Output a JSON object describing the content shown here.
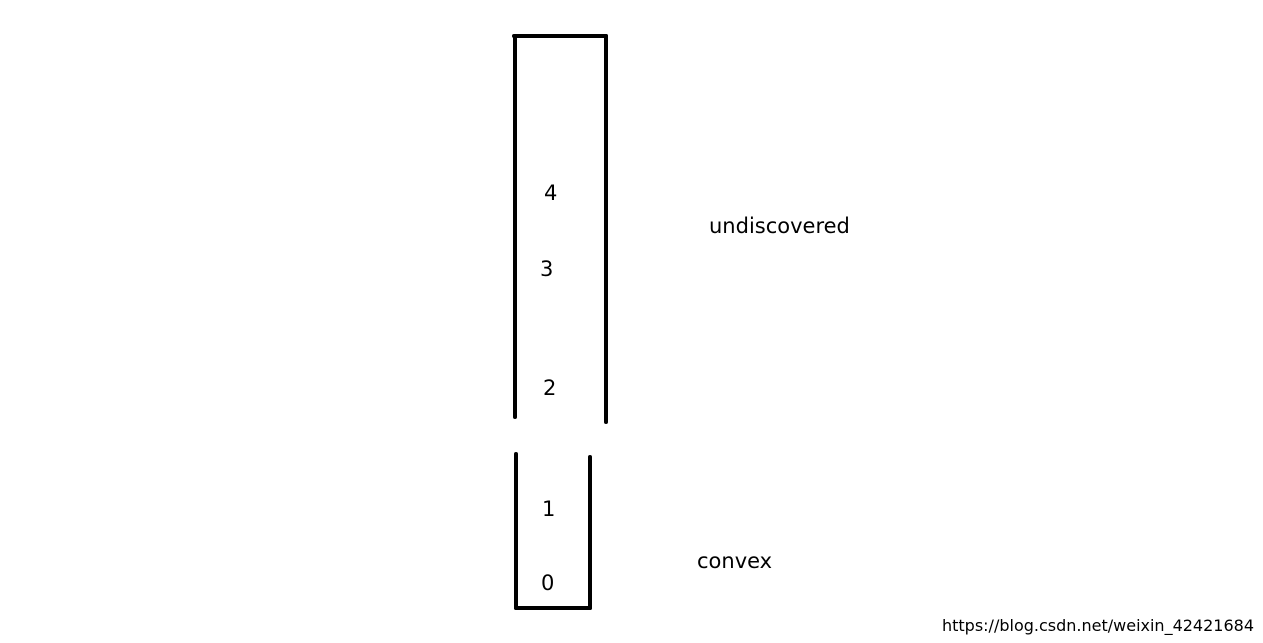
{
  "stack_top": {
    "items": [
      "2",
      "3",
      "4"
    ]
  },
  "stack_bottom": {
    "items": [
      "0",
      "1"
    ]
  },
  "labels": {
    "undiscovered": "undiscovered",
    "convex": "convex"
  },
  "watermark": "https://blog.csdn.net/weixin_42421684",
  "colors": {
    "stroke": "#000000",
    "watermark": "#d6d6d6"
  }
}
